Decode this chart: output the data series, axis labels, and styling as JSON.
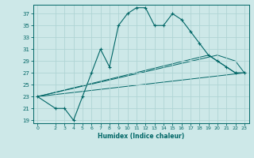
{
  "xlabel": "Humidex (Indice chaleur)",
  "bg_color": "#cde8e8",
  "line_color": "#006666",
  "grid_color": "#b0d4d4",
  "ylim": [
    18.5,
    38.5
  ],
  "xlim": [
    -0.5,
    23.5
  ],
  "yticks": [
    19,
    21,
    23,
    25,
    27,
    29,
    31,
    33,
    35,
    37
  ],
  "xticks": [
    0,
    2,
    3,
    4,
    5,
    6,
    7,
    8,
    9,
    10,
    11,
    12,
    13,
    14,
    15,
    16,
    17,
    18,
    19,
    20,
    21,
    22,
    23
  ],
  "line1_x": [
    0,
    2,
    3,
    4,
    5,
    6,
    7,
    8,
    9,
    10,
    11,
    12,
    13,
    14,
    15,
    16,
    17,
    18,
    19,
    20,
    21,
    22,
    23
  ],
  "line1_y": [
    23,
    21,
    21,
    19,
    23,
    27,
    31,
    28,
    35,
    37,
    38,
    38,
    35,
    35,
    37,
    36,
    34,
    32,
    30,
    29,
    28,
    27,
    27
  ],
  "line2_x": [
    0,
    23
  ],
  "line2_y": [
    23,
    27
  ],
  "line3_x": [
    0,
    20,
    22,
    23
  ],
  "line3_y": [
    23,
    30,
    29,
    27
  ],
  "line4_x": [
    0,
    19,
    21,
    22,
    23
  ],
  "line4_y": [
    23,
    30,
    28,
    27,
    27
  ]
}
